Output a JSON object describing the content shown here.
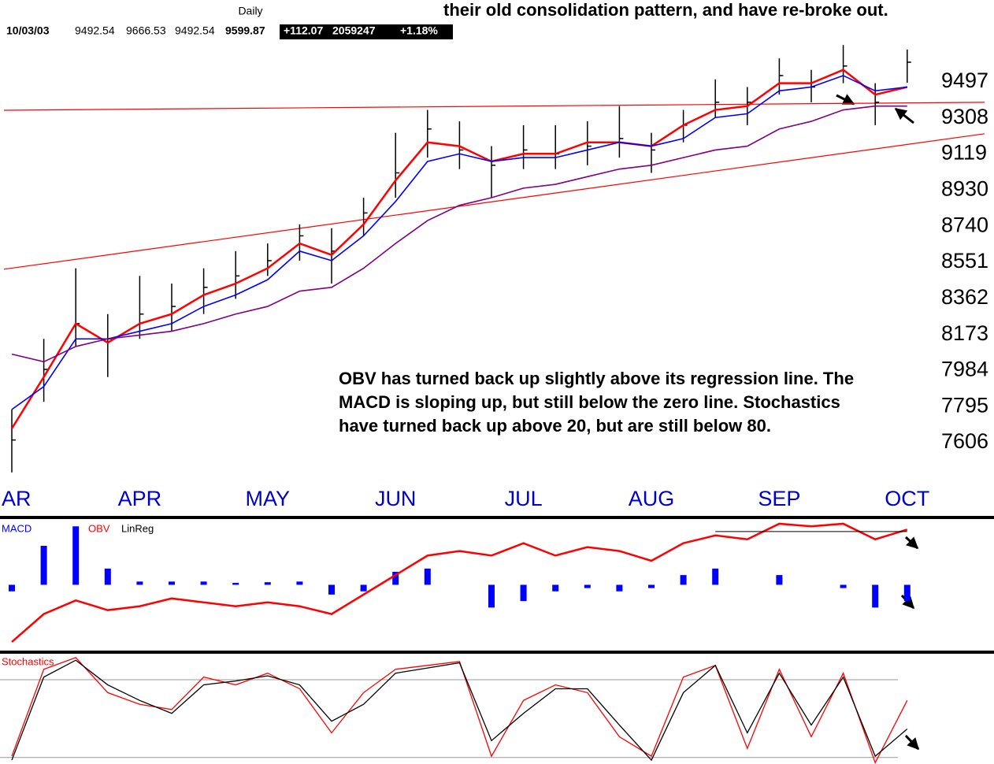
{
  "header": {
    "period": "Daily",
    "date": "10/03/03",
    "open": "9492.54",
    "high": "9666.53",
    "low": "9492.54",
    "close": "9599.87",
    "change": "+112.07",
    "volume": "2059247",
    "change_pct": "+1.18%"
  },
  "headline": "their old consolidation pattern, and have re-broke out.",
  "annotation": [
    "OBV has turned back up slightly above its regression line.  The",
    "MACD is sloping up, but still below the zero line.  Stochastics",
    "have turned back up above 20, but are still below 80."
  ],
  "chart_data": [
    {
      "type": "ohlc",
      "categories": [
        "AR",
        null,
        null,
        null,
        "APR",
        null,
        null,
        null,
        "MAY",
        null,
        null,
        null,
        "JUN",
        null,
        null,
        null,
        "JUL",
        null,
        null,
        null,
        "AUG",
        null,
        null,
        null,
        "SEP",
        null,
        null,
        null,
        "OCT"
      ],
      "high": [
        7780,
        8150,
        8520,
        8280,
        8480,
        8440,
        8520,
        8610,
        8650,
        8750,
        8730,
        8890,
        9230,
        9350,
        9290,
        9160,
        9270,
        9270,
        9290,
        9370,
        9230,
        9350,
        9510,
        9470,
        9620,
        9560,
        9690,
        9490,
        9666.53
      ],
      "low": [
        7450,
        7820,
        8110,
        7950,
        8150,
        8190,
        8280,
        8360,
        8480,
        8560,
        8440,
        8690,
        8890,
        9100,
        9040,
        8890,
        9040,
        9040,
        9060,
        9100,
        9020,
        9180,
        9310,
        9270,
        9430,
        9390,
        9490,
        9270,
        9492.54
      ],
      "close": [
        7620,
        7990,
        8230,
        8150,
        8280,
        8320,
        8420,
        8480,
        8560,
        8690,
        8610,
        8810,
        9020,
        9250,
        9140,
        9060,
        9140,
        9120,
        9160,
        9200,
        9140,
        9270,
        9390,
        9390,
        9530,
        9470,
        9580,
        9390,
        9599.87
      ],
      "bar_color": "#000000",
      "series": [
        {
          "color": "#ff0000",
          "values": [
            7680,
            7950,
            8230,
            8130,
            8230,
            8280,
            8380,
            8440,
            8520,
            8650,
            8590,
            8750,
            8980,
            9180,
            9160,
            9080,
            9120,
            9120,
            9180,
            9180,
            9160,
            9270,
            9350,
            9370,
            9490,
            9490,
            9560,
            9430,
            9470
          ]
        },
        {
          "color": "#0000ff",
          "values": [
            7780,
            7900,
            8150,
            8150,
            8190,
            8230,
            8320,
            8380,
            8460,
            8610,
            8560,
            8690,
            8870,
            9080,
            9120,
            9080,
            9100,
            9100,
            9140,
            9180,
            9160,
            9200,
            9310,
            9330,
            9450,
            9470,
            9530,
            9450,
            9470
          ]
        },
        {
          "color": "#800080",
          "values": [
            8070,
            8030,
            8110,
            8150,
            8170,
            8190,
            8230,
            8280,
            8320,
            8400,
            8420,
            8520,
            8650,
            8770,
            8850,
            8890,
            8940,
            8960,
            9000,
            9040,
            9060,
            9100,
            9140,
            9160,
            9250,
            9290,
            9350,
            9370,
            9370
          ]
        }
      ],
      "trendlines": [
        {
          "color": "#ff0000",
          "values": [
            9348,
            9390
          ]
        },
        {
          "color": "#ff0000",
          "values": [
            8515,
            9225
          ]
        }
      ],
      "ylim": [
        7408,
        9699
      ],
      "yticks": [
        7606,
        7795,
        7984,
        8173,
        8362,
        8551,
        8740,
        8930,
        9119,
        9308,
        9497
      ]
    },
    {
      "type": "bar",
      "series": [
        {
          "name": "MACD",
          "color": "#0000ff",
          "kind": "bar",
          "values": [
            -10,
            60,
            90,
            25,
            5,
            5,
            5,
            3,
            4,
            5,
            -15,
            -10,
            20,
            25,
            0,
            -35,
            -25,
            -10,
            -5,
            -10,
            -5,
            15,
            25,
            0,
            15,
            0,
            -5,
            -35,
            -25
          ]
        },
        {
          "name": "OBV",
          "color": "#ff0000",
          "kind": "line",
          "values": [
            -88,
            -45,
            -24,
            -39,
            -33,
            -21,
            -27,
            -33,
            -27,
            -33,
            -45,
            -15,
            15,
            45,
            52,
            45,
            64,
            45,
            58,
            52,
            37,
            64,
            76,
            70,
            94,
            90,
            94,
            70,
            85
          ]
        },
        {
          "name": "LinReg",
          "color": "#000000",
          "kind": "line",
          "values": [
            null,
            null,
            null,
            null,
            null,
            null,
            null,
            null,
            null,
            null,
            null,
            null,
            null,
            null,
            null,
            null,
            null,
            null,
            null,
            null,
            null,
            null,
            82,
            82,
            82,
            82,
            82,
            82,
            82
          ]
        }
      ],
      "ylim": [
        -100,
        100
      ]
    },
    {
      "type": "line",
      "title": "Stochastics",
      "series": [
        {
          "color": "#ff0000",
          "values": [
            21,
            88,
            97,
            70,
            61,
            57,
            82,
            76,
            85,
            73,
            39,
            70,
            88,
            91,
            94,
            21,
            64,
            76,
            70,
            36,
            21,
            82,
            91,
            27,
            88,
            36,
            85,
            16,
            64
          ]
        },
        {
          "color": "#000000",
          "values": [
            18,
            82,
            95,
            76,
            64,
            54,
            76,
            79,
            83,
            76,
            48,
            61,
            85,
            89,
            93,
            33,
            54,
            73,
            73,
            45,
            18,
            70,
            91,
            39,
            85,
            45,
            82,
            21,
            42
          ]
        }
      ],
      "levels": [
        20,
        80
      ],
      "ylim": [
        15,
        100
      ]
    }
  ]
}
